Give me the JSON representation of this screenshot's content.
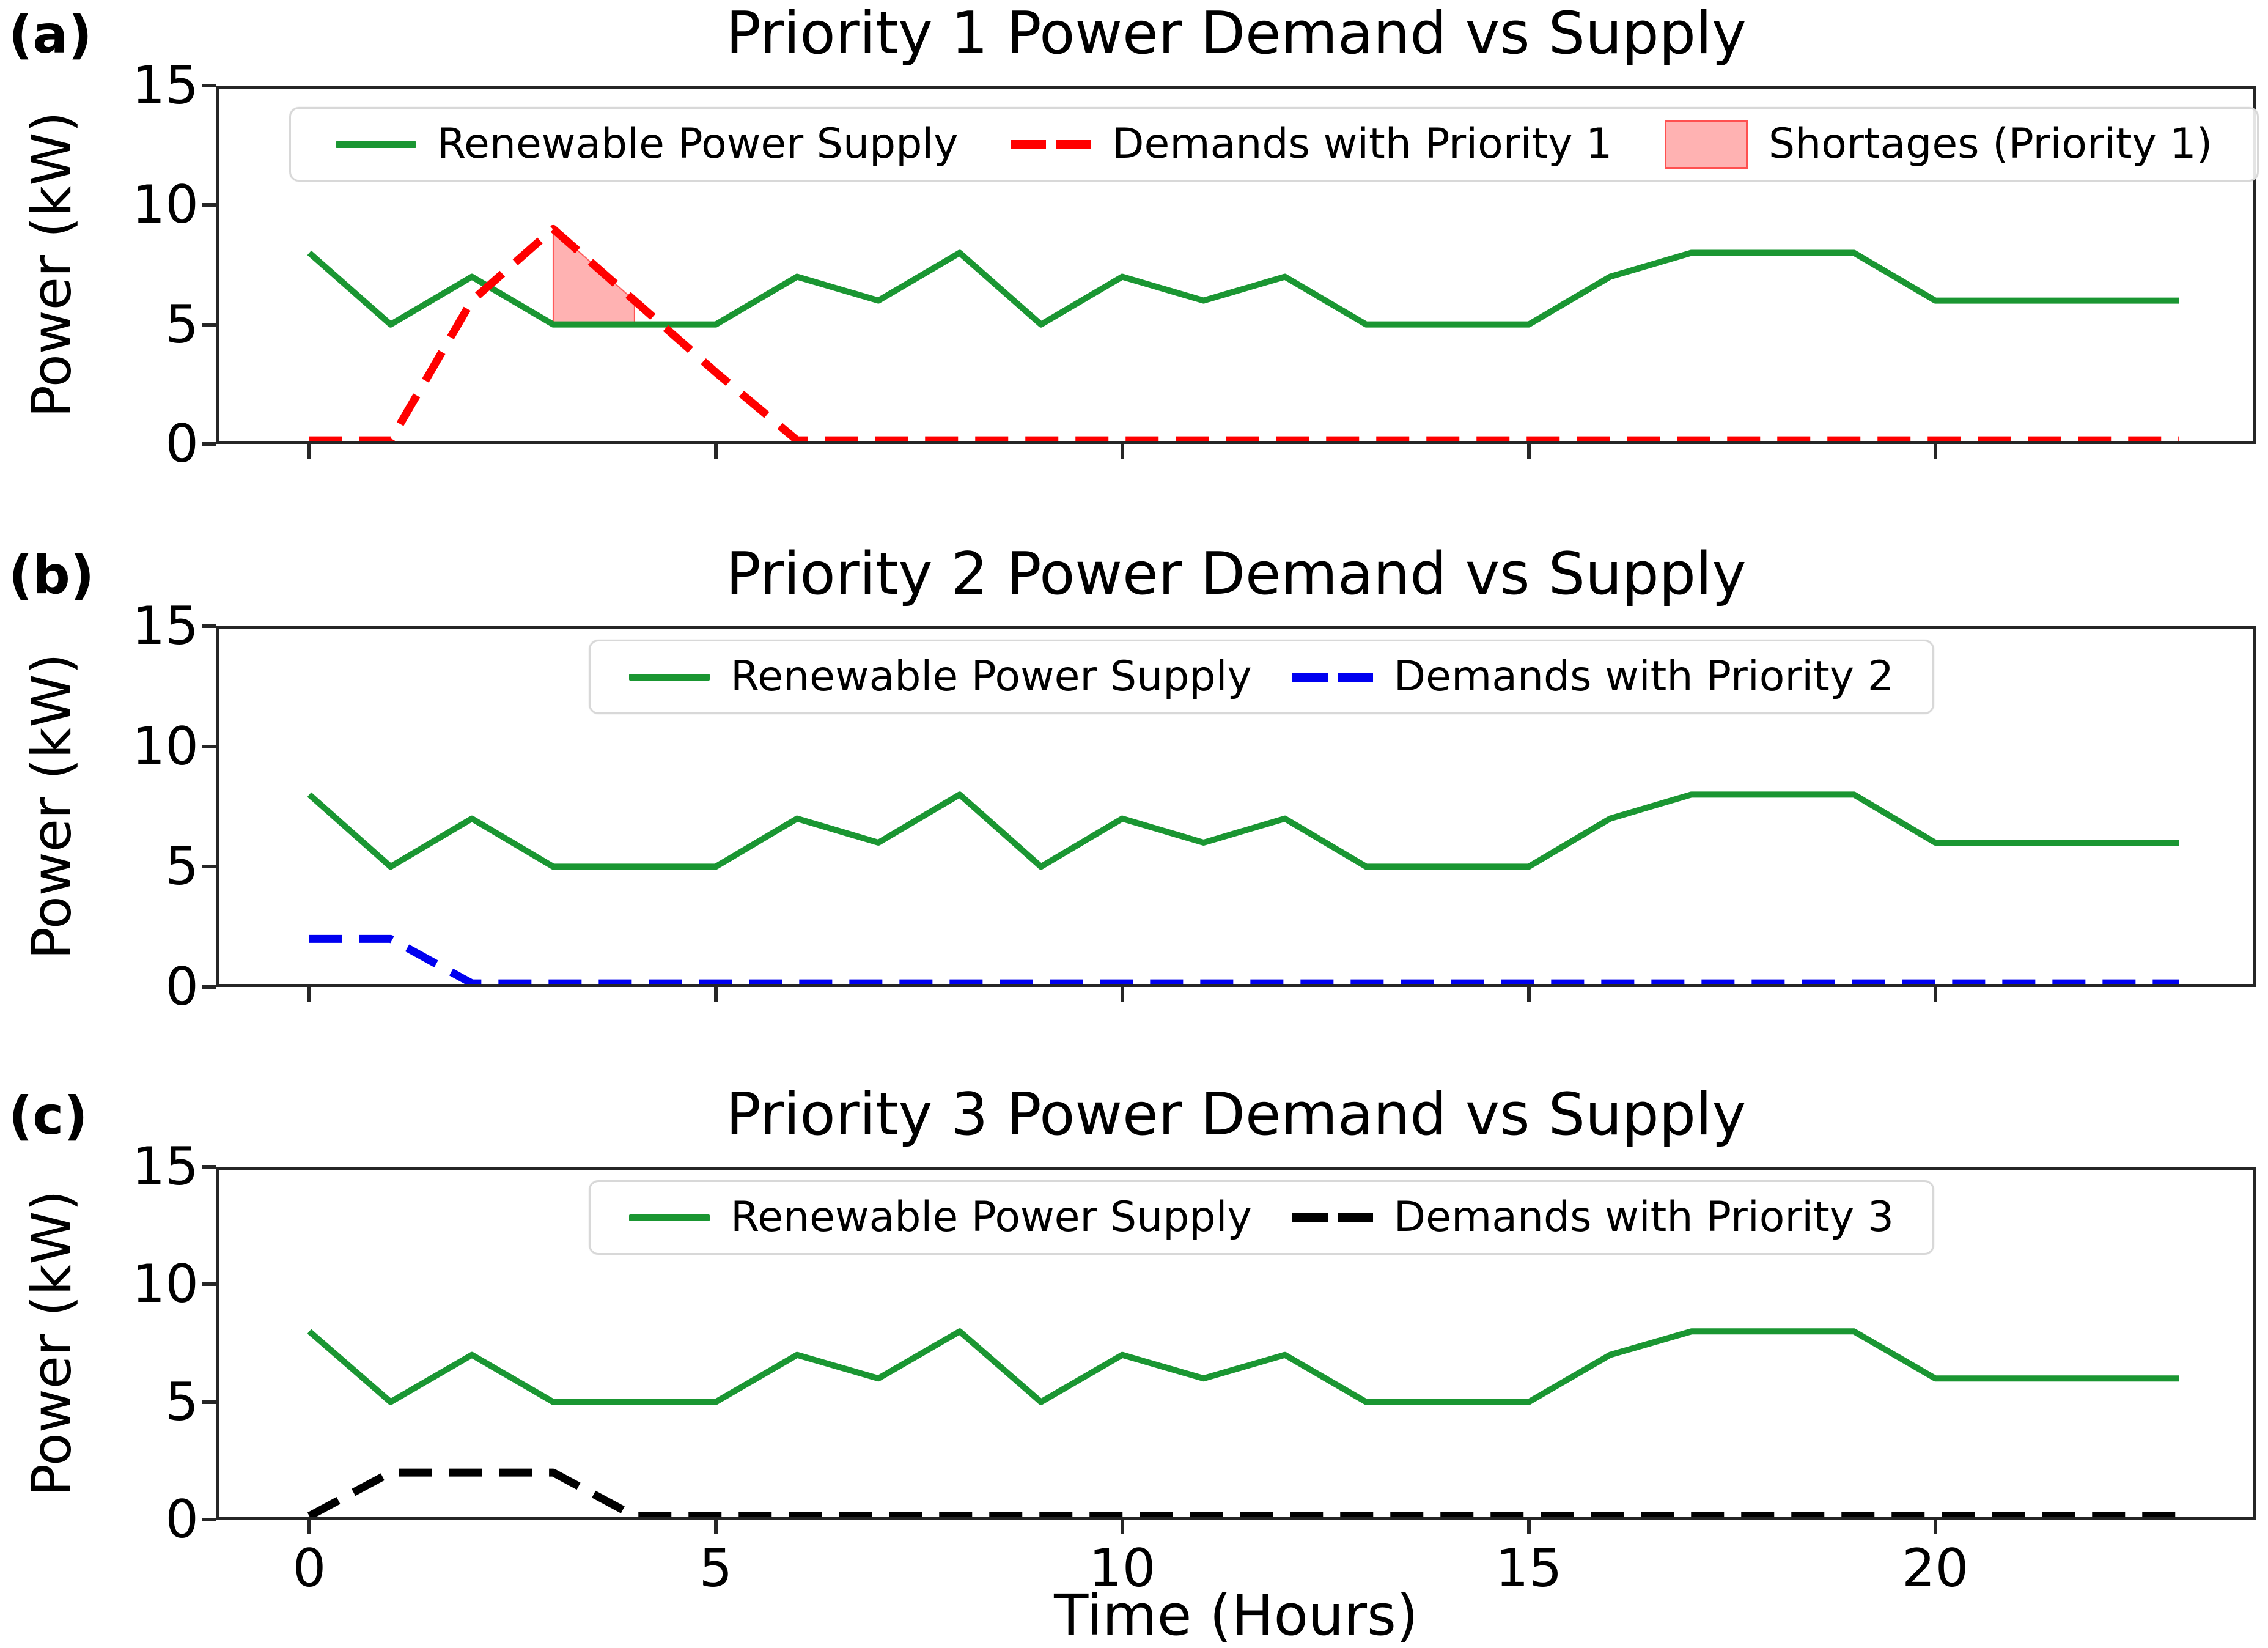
{
  "figure": {
    "background": "#ffffff",
    "xlabel": "Time (Hours)",
    "x_tick_labels": [
      "0",
      "5",
      "10",
      "15",
      "20"
    ],
    "x_tick_values": [
      0,
      5,
      10,
      15,
      20
    ],
    "y_tick_labels": [
      "0",
      "5",
      "10",
      "15"
    ],
    "y_tick_values": [
      0,
      5,
      10,
      15
    ],
    "xlim": [
      -1.15,
      23.95
    ],
    "ylim": [
      0,
      15
    ],
    "grid": false,
    "legend_position": "upper center"
  },
  "colors": {
    "supply_green": "#1a9632",
    "priority1_red": "#ff0000",
    "priority2_blue": "#0000f0",
    "priority3_black": "#000000",
    "shortage_fill": "rgba(255,0,0,0.30)",
    "shortage_edge": "rgba(255,0,0,0.55)",
    "axis": "#262626"
  },
  "chart_data": [
    {
      "panel_label": "(a)",
      "type": "line",
      "title": "Priority 1 Power Demand vs Supply",
      "ylabel": "Power (kW)",
      "xlabel": "",
      "ylim": [
        0,
        15
      ],
      "x": [
        0,
        1,
        2,
        3,
        4,
        5,
        6,
        7,
        8,
        9,
        10,
        11,
        12,
        13,
        14,
        15,
        16,
        17,
        18,
        19,
        20,
        21,
        22,
        23
      ],
      "series": [
        {
          "name": "Renewable Power Supply",
          "style": "solid",
          "color_key": "supply_green",
          "values": [
            8,
            5,
            7,
            5,
            5,
            5,
            7,
            6,
            8,
            5,
            7,
            6,
            7,
            5,
            5,
            5,
            7,
            8,
            8,
            8,
            6,
            6,
            6,
            6
          ]
        },
        {
          "name": "Demands with Priority 1",
          "style": "dashed",
          "color_key": "priority1_red",
          "values": [
            0.15,
            0.15,
            6,
            9,
            6,
            3,
            0.15,
            0.15,
            0.15,
            0.15,
            0.15,
            0.15,
            0.15,
            0.15,
            0.15,
            0.15,
            0.15,
            0.15,
            0.15,
            0.15,
            0.15,
            0.15,
            0.15,
            0.15
          ]
        }
      ],
      "shortage": {
        "name": "Shortages (Priority 1)",
        "polygon": [
          [
            3,
            5
          ],
          [
            3,
            9
          ],
          [
            4,
            6
          ],
          [
            4,
            5
          ]
        ]
      }
    },
    {
      "panel_label": "(b)",
      "type": "line",
      "title": "Priority 2 Power Demand vs Supply",
      "ylabel": "Power (kW)",
      "xlabel": "",
      "ylim": [
        0,
        15
      ],
      "x": [
        0,
        1,
        2,
        3,
        4,
        5,
        6,
        7,
        8,
        9,
        10,
        11,
        12,
        13,
        14,
        15,
        16,
        17,
        18,
        19,
        20,
        21,
        22,
        23
      ],
      "series": [
        {
          "name": "Renewable Power Supply",
          "style": "solid",
          "color_key": "supply_green",
          "values": [
            8,
            5,
            7,
            5,
            5,
            5,
            7,
            6,
            8,
            5,
            7,
            6,
            7,
            5,
            5,
            5,
            7,
            8,
            8,
            8,
            6,
            6,
            6,
            6
          ]
        },
        {
          "name": "Demands with Priority 2",
          "style": "dashed",
          "color_key": "priority2_blue",
          "values": [
            2,
            2,
            0.15,
            0.15,
            0.15,
            0.15,
            0.15,
            0.15,
            0.15,
            0.15,
            0.15,
            0.15,
            0.15,
            0.15,
            0.15,
            0.15,
            0.15,
            0.15,
            0.15,
            0.15,
            0.15,
            0.15,
            0.15,
            0.15
          ]
        }
      ]
    },
    {
      "panel_label": "(c)",
      "type": "line",
      "title": "Priority 3 Power Demand vs Supply",
      "ylabel": "Power (kW)",
      "xlabel": "Time (Hours)",
      "ylim": [
        0,
        15
      ],
      "x": [
        0,
        1,
        2,
        3,
        4,
        5,
        6,
        7,
        8,
        9,
        10,
        11,
        12,
        13,
        14,
        15,
        16,
        17,
        18,
        19,
        20,
        21,
        22,
        23
      ],
      "series": [
        {
          "name": "Renewable Power Supply",
          "style": "solid",
          "color_key": "supply_green",
          "values": [
            8,
            5,
            7,
            5,
            5,
            5,
            7,
            6,
            8,
            5,
            7,
            6,
            7,
            5,
            5,
            5,
            7,
            8,
            8,
            8,
            6,
            6,
            6,
            6
          ]
        },
        {
          "name": "Demands with Priority 3",
          "style": "dashed",
          "color_key": "priority3_black",
          "values": [
            0.15,
            2,
            2,
            2,
            0.15,
            0.15,
            0.15,
            0.15,
            0.15,
            0.15,
            0.15,
            0.15,
            0.15,
            0.15,
            0.15,
            0.15,
            0.15,
            0.15,
            0.15,
            0.15,
            0.15,
            0.15,
            0.15,
            0.15
          ]
        }
      ]
    }
  ]
}
